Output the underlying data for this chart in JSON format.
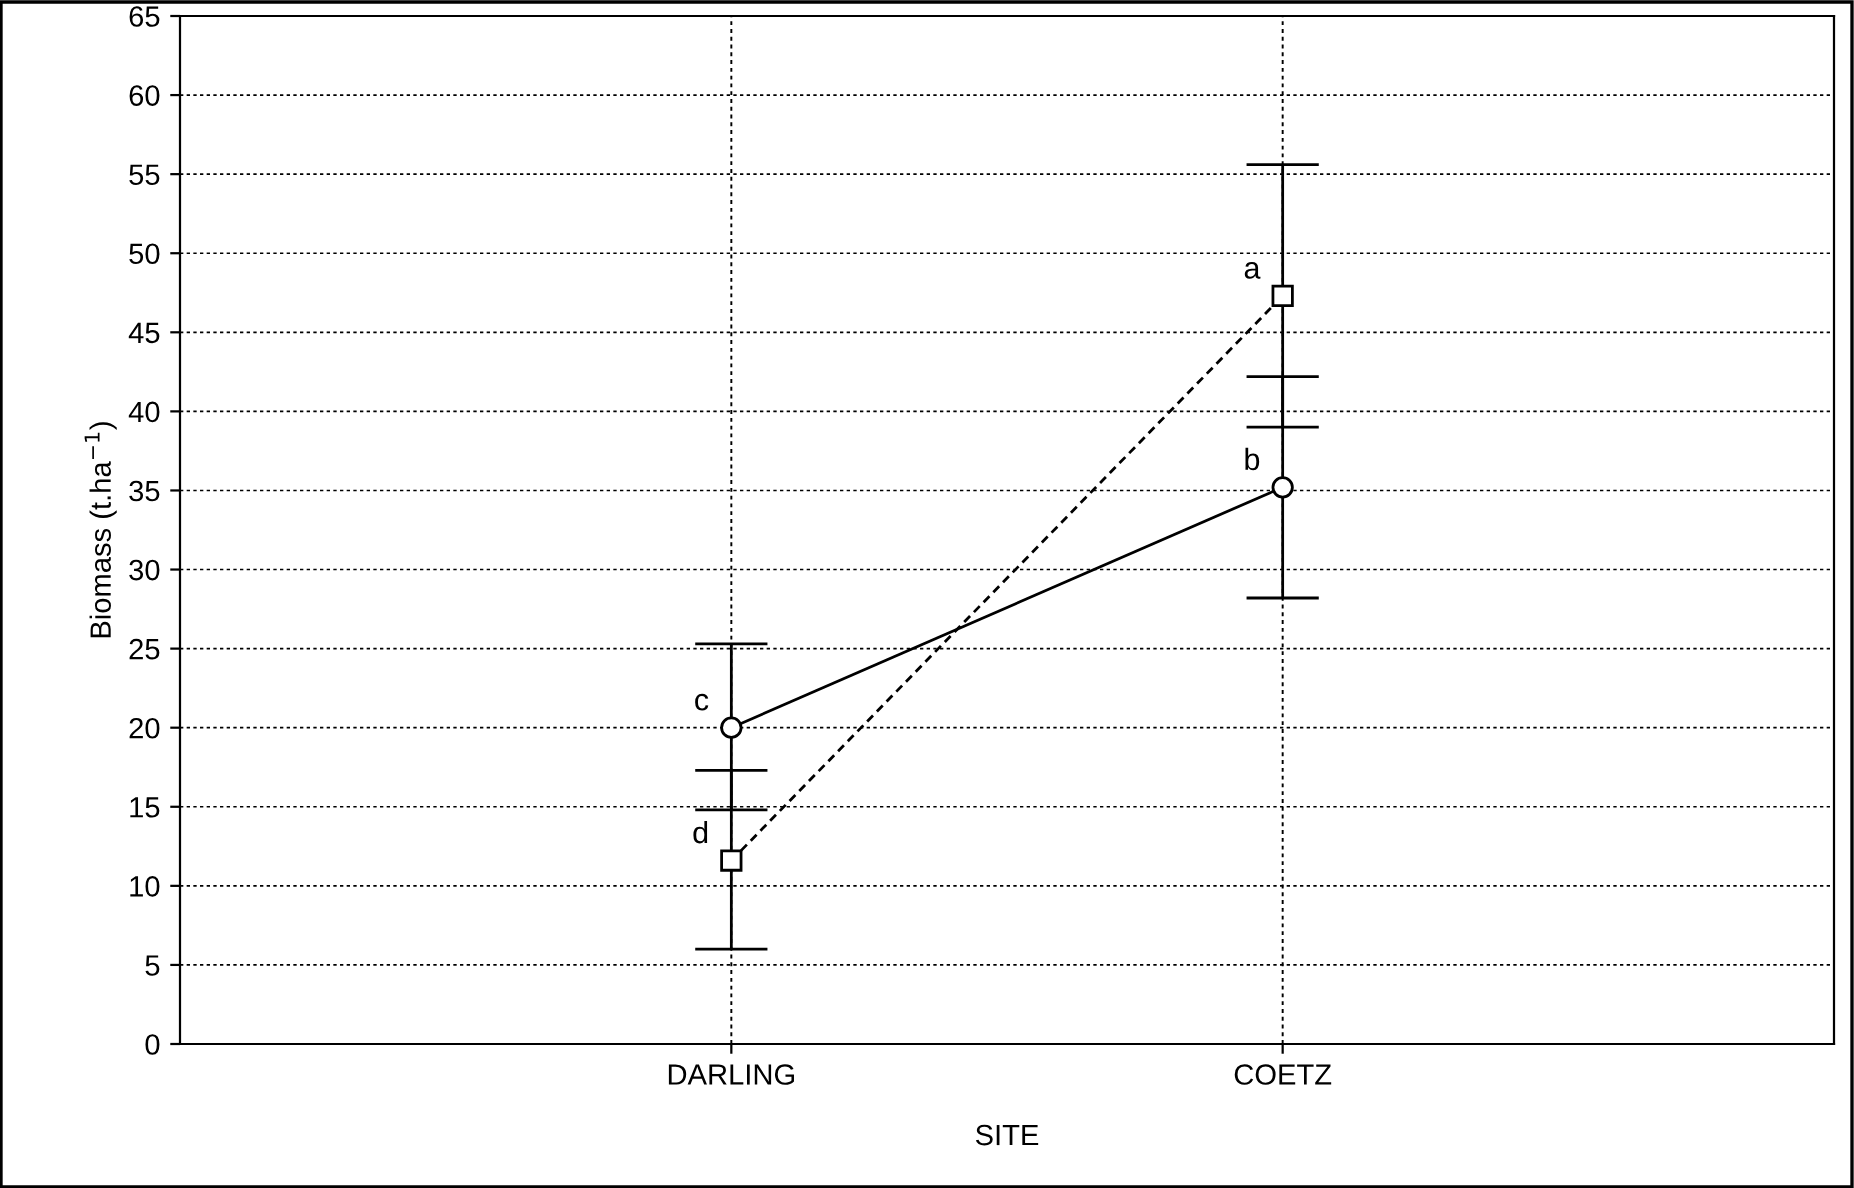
{
  "chart_data": {
    "type": "line",
    "xlabel": "SITE",
    "ylabel": "Biomass (t.ha$^{−1}$)",
    "categories": [
      "DARLING",
      "COETZ"
    ],
    "series": [
      {
        "color": "#000000",
        "values": [
          20,
          35.2
        ],
        "errors": [
          [
            14.8,
            25.3
          ],
          [
            28.2,
            42.2
          ]
        ],
        "value_labels": [
          "c",
          "b"
        ],
        "marker": "circle",
        "line_style": "solid"
      },
      {
        "color": "#000000",
        "values": [
          11.6,
          47.3
        ],
        "errors": [
          [
            6,
            17.3
          ],
          [
            39,
            55.6
          ]
        ],
        "value_labels": [
          "d",
          "a"
        ],
        "marker": "square",
        "line_style": "dashed"
      }
    ],
    "ylim": [
      0,
      65
    ],
    "yticks": [
      0,
      5,
      10,
      15,
      20,
      25,
      30,
      35,
      40,
      45,
      50,
      55,
      60,
      65
    ],
    "grid": true
  }
}
